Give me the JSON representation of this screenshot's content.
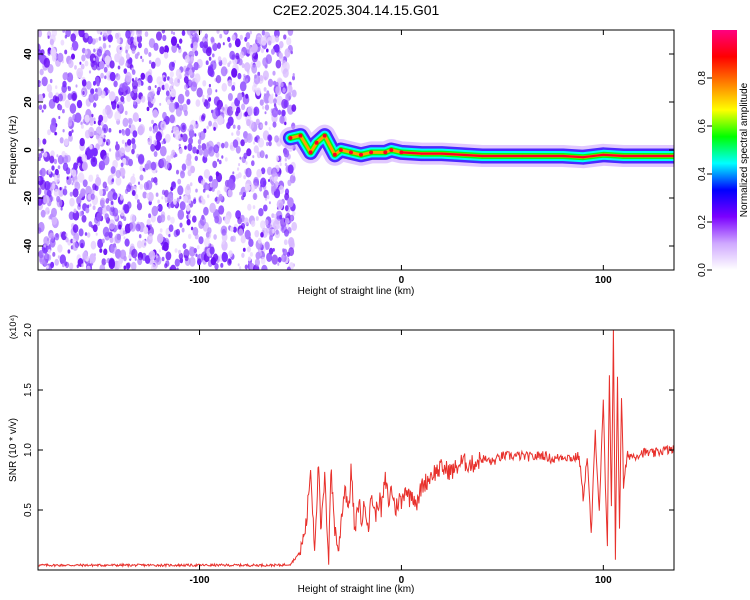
{
  "title": "C2E2.2025.304.14.15.G01",
  "chart_data": [
    {
      "type": "heatmap",
      "xlabel": "Height of straight line (km)",
      "ylabel": "Frequency (Hz)",
      "xlim": [
        -180,
        135
      ],
      "ylim": [
        -50,
        50
      ],
      "xticks": [
        -100,
        0,
        100
      ],
      "yticks": [
        -40,
        -20,
        0,
        20,
        40
      ],
      "noise_region_x": [
        -180,
        -55
      ],
      "signal_track": [
        {
          "x": -55,
          "y": 5
        },
        {
          "x": -50,
          "y": 6
        },
        {
          "x": -45,
          "y": -1
        },
        {
          "x": -42,
          "y": 3
        },
        {
          "x": -38,
          "y": 6
        },
        {
          "x": -33,
          "y": -2
        },
        {
          "x": -30,
          "y": 0
        },
        {
          "x": -25,
          "y": -1
        },
        {
          "x": -20,
          "y": -2
        },
        {
          "x": -15,
          "y": -1
        },
        {
          "x": -8,
          "y": -1
        },
        {
          "x": -5,
          "y": 0
        },
        {
          "x": 0,
          "y": -1
        },
        {
          "x": 10,
          "y": -1.5
        },
        {
          "x": 20,
          "y": -1.5
        },
        {
          "x": 40,
          "y": -2.5
        },
        {
          "x": 60,
          "y": -2.5
        },
        {
          "x": 80,
          "y": -2.5
        },
        {
          "x": 90,
          "y": -3
        },
        {
          "x": 100,
          "y": -2
        },
        {
          "x": 110,
          "y": -2.5
        },
        {
          "x": 120,
          "y": -2.5
        },
        {
          "x": 135,
          "y": -2.5
        }
      ],
      "colorbar": {
        "label": "Normalized spectral amplitude",
        "range": [
          0,
          1
        ],
        "ticks": [
          0.0,
          0.2,
          0.4,
          0.6,
          0.8
        ],
        "tick_labels": [
          "0.0",
          "0.2",
          "0.4",
          "0.6",
          "0.8"
        ],
        "colors": [
          "#ffffff",
          "#cfa8ff",
          "#7b00ff",
          "#0000ff",
          "#00ffff",
          "#00ff00",
          "#ffff00",
          "#ff8000",
          "#ff0000",
          "#ff0080"
        ]
      }
    },
    {
      "type": "line",
      "xlabel": "Height of straight line (km)",
      "ylabel": "SNR (10 * v/v)",
      "ylabel_multiplier": "(x10⁴)",
      "xlim": [
        -180,
        135
      ],
      "ylim": [
        0,
        2.0
      ],
      "xticks": [
        -100,
        0,
        100
      ],
      "yticks": [
        0.5,
        1.0,
        1.5,
        2.0
      ],
      "ytick_labels": [
        "0.5",
        "1.0",
        "1.5",
        "2.0"
      ],
      "series": [
        {
          "color": "#e8312c",
          "x": [
            -180,
            -160,
            -140,
            -120,
            -100,
            -80,
            -60,
            -55,
            -50,
            -47,
            -45,
            -43,
            -41,
            -40,
            -38,
            -36,
            -35,
            -33,
            -31,
            -30,
            -28,
            -26,
            -25,
            -23,
            -21,
            -20,
            -18,
            -16,
            -15,
            -13,
            -11,
            -10,
            -8,
            -6,
            -5,
            -3,
            -1,
            0,
            2,
            4,
            5,
            8,
            10,
            13,
            15,
            20,
            25,
            30,
            35,
            40,
            45,
            50,
            55,
            60,
            65,
            70,
            75,
            80,
            85,
            88,
            90,
            92,
            94,
            96,
            98,
            100,
            101,
            102,
            103,
            104,
            105,
            106,
            107,
            108,
            109,
            110,
            112,
            115,
            120,
            125,
            130,
            135
          ],
          "values": [
            0.04,
            0.04,
            0.04,
            0.04,
            0.04,
            0.04,
            0.04,
            0.05,
            0.15,
            0.4,
            0.85,
            0.2,
            0.9,
            0.3,
            0.75,
            0.1,
            0.85,
            0.35,
            0.15,
            0.4,
            0.7,
            0.5,
            0.85,
            0.3,
            0.6,
            0.4,
            0.55,
            0.35,
            0.65,
            0.45,
            0.6,
            0.5,
            0.75,
            0.55,
            0.7,
            0.5,
            0.6,
            0.55,
            0.7,
            0.6,
            0.65,
            0.55,
            0.7,
            0.75,
            0.8,
            0.85,
            0.82,
            0.9,
            0.88,
            0.93,
            0.9,
            0.95,
            0.95,
            0.95,
            0.94,
            0.96,
            0.92,
            0.95,
            0.93,
            0.95,
            0.6,
            0.95,
            0.3,
            1.15,
            0.5,
            1.4,
            0.7,
            0.2,
            1.6,
            0.55,
            2.0,
            0.1,
            1.6,
            0.35,
            1.45,
            0.7,
            0.96,
            0.95,
            0.98,
            0.97,
            1.0,
            1.0
          ]
        }
      ]
    }
  ]
}
